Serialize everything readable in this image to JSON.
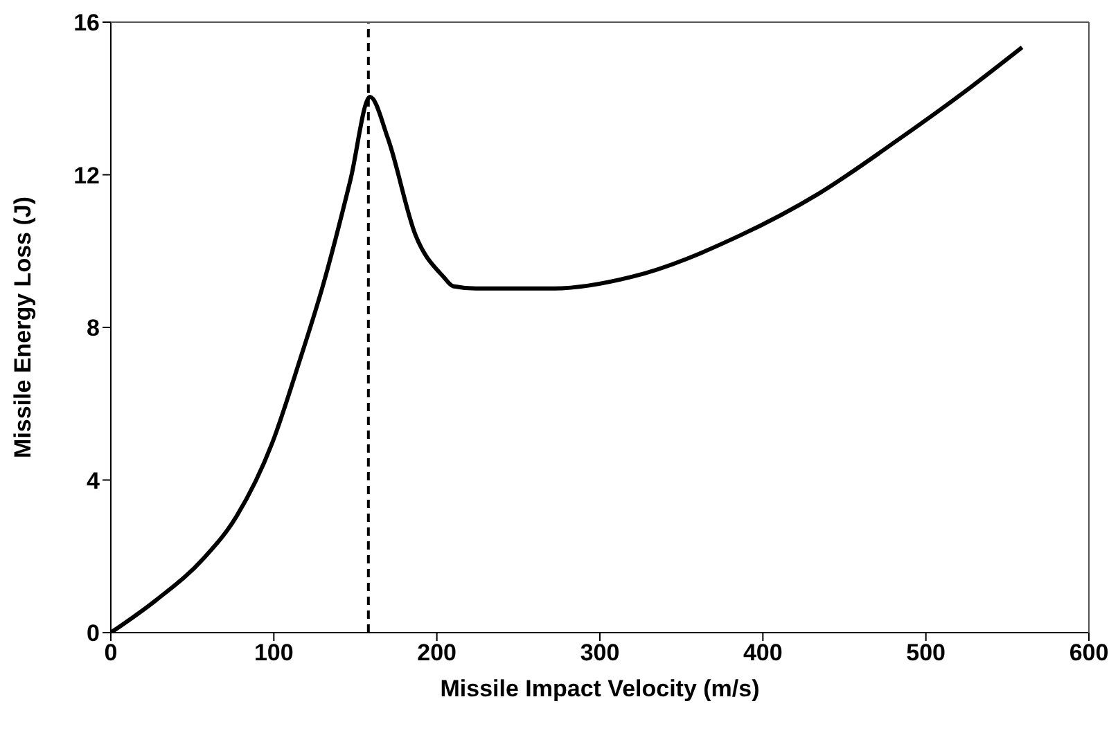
{
  "chart_data": {
    "type": "line",
    "xlabel": "Missile Impact Velocity (m/s)",
    "ylabel": "Missile Energy Loss (J)",
    "x": [
      0,
      28,
      57,
      77,
      99,
      116,
      130,
      147,
      159,
      170,
      187,
      204,
      210,
      224,
      272,
      320,
      386,
      434,
      484,
      527,
      559
    ],
    "series": [
      {
        "color": "#000000",
        "values": [
          0,
          0.86,
          1.95,
          3.04,
          4.97,
          7.15,
          9.08,
          11.87,
          14.04,
          12.95,
          10.41,
          9.33,
          9.08,
          9.02,
          9.02,
          9.33,
          10.41,
          11.5,
          12.95,
          14.28,
          15.34
        ]
      }
    ],
    "xlim": [
      0,
      600
    ],
    "xticks": [
      0,
      100,
      200,
      300,
      400,
      500,
      600
    ],
    "ylim": [
      0,
      16
    ],
    "yticks": [
      0,
      4,
      8,
      12,
      16
    ],
    "ref_lines": [
      {
        "axis": "x",
        "value": 158,
        "color": "#000000",
        "line_style": "dashed"
      }
    ],
    "grid": false,
    "legend": false,
    "marker": "none",
    "line_style": "solid"
  }
}
